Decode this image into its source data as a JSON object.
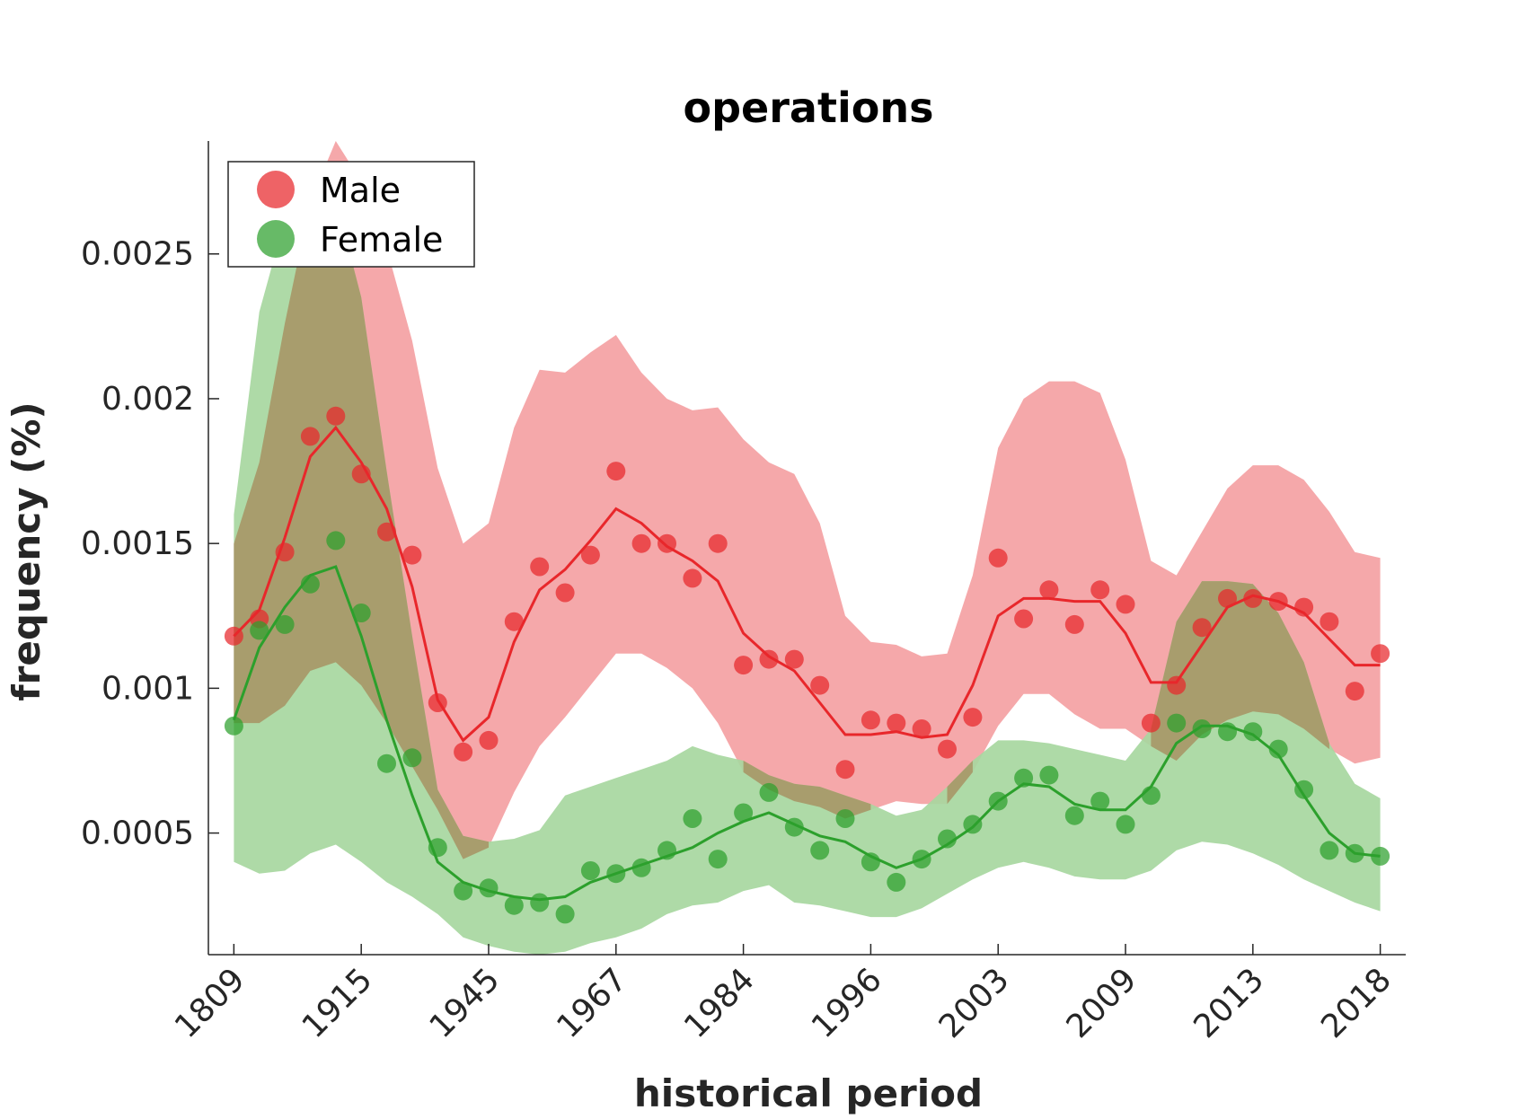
{
  "chart_data": {
    "type": "line",
    "title": "operations",
    "xlabel": "historical period",
    "ylabel": "frequency (%)",
    "x_tick_labels": [
      "1809",
      "1915",
      "1945",
      "1967",
      "1984",
      "1996",
      "2003",
      "2009",
      "2013",
      "2018"
    ],
    "x_tick_positions": [
      0,
      5,
      10,
      15,
      20,
      25,
      30,
      35,
      40,
      45
    ],
    "xlim": [
      -1,
      46
    ],
    "y_ticks": [
      0.0005,
      0.001,
      0.0015,
      0.002,
      0.0025
    ],
    "y_tick_labels": [
      "0.0005",
      "0.001",
      "0.0015",
      "0.002",
      "0.0025"
    ],
    "ylim": [
      8e-05,
      0.00289
    ],
    "legend_position": "top-left",
    "series": [
      {
        "name": "Male",
        "color": "#e8272b",
        "band_color": "#f4a1a3",
        "points": [
          0.00118,
          0.00124,
          0.00147,
          0.00187,
          0.00194,
          0.00174,
          0.00154,
          0.00146,
          0.00095,
          0.00078,
          0.00082,
          0.00123,
          0.00142,
          0.00133,
          0.00146,
          0.00175,
          0.0015,
          0.0015,
          0.00138,
          0.0015,
          0.00108,
          0.0011,
          0.0011,
          0.00101,
          0.00072,
          0.00089,
          0.00088,
          0.00086,
          0.00079,
          0.0009,
          0.00145,
          0.00124,
          0.00134,
          0.00122,
          0.00134,
          0.00129,
          0.00088,
          0.00101,
          0.00121,
          0.00131,
          0.00131,
          0.0013,
          0.00128,
          0.00123,
          0.00099,
          0.00112
        ],
        "trend": [
          0.00118,
          0.00127,
          0.00152,
          0.0018,
          0.0019,
          0.00178,
          0.00162,
          0.00135,
          0.00096,
          0.00082,
          0.0009,
          0.00116,
          0.00134,
          0.00141,
          0.00151,
          0.00162,
          0.00157,
          0.00149,
          0.00144,
          0.00137,
          0.00119,
          0.00111,
          0.00106,
          0.00095,
          0.00084,
          0.00084,
          0.00085,
          0.00083,
          0.00084,
          0.00101,
          0.00125,
          0.00131,
          0.00131,
          0.0013,
          0.0013,
          0.00119,
          0.00102,
          0.00102,
          0.00115,
          0.00128,
          0.00132,
          0.0013,
          0.00126,
          0.00117,
          0.00108,
          0.00108
        ],
        "band_upper": [
          0.0015,
          0.00178,
          0.00226,
          0.00268,
          0.00289,
          0.00275,
          0.00252,
          0.0022,
          0.00176,
          0.0015,
          0.00157,
          0.0019,
          0.0021,
          0.00209,
          0.00216,
          0.00222,
          0.00209,
          0.002,
          0.00196,
          0.00197,
          0.00186,
          0.00178,
          0.00174,
          0.00157,
          0.00125,
          0.00116,
          0.00115,
          0.00111,
          0.00112,
          0.00139,
          0.00183,
          0.002,
          0.00206,
          0.00206,
          0.00202,
          0.00179,
          0.00144,
          0.00139,
          0.00154,
          0.00169,
          0.00177,
          0.00177,
          0.00172,
          0.00161,
          0.00147,
          0.00145
        ],
        "band_lower": [
          0.00088,
          0.00088,
          0.00094,
          0.00106,
          0.00109,
          0.00101,
          0.00088,
          0.00073,
          0.00058,
          0.00041,
          0.00045,
          0.00064,
          0.0008,
          0.0009,
          0.00101,
          0.00112,
          0.00112,
          0.00107,
          0.001,
          0.00088,
          0.00071,
          0.00065,
          0.00061,
          0.00059,
          0.00055,
          0.00058,
          0.00061,
          0.0006,
          0.0006,
          0.00071,
          0.00087,
          0.00098,
          0.00098,
          0.00091,
          0.00086,
          0.00086,
          0.0008,
          0.00075,
          0.00084,
          0.00089,
          0.00092,
          0.00091,
          0.00086,
          0.00079,
          0.00074,
          0.00076
        ]
      },
      {
        "name": "Female",
        "color": "#2ca02c",
        "band_color": "#a7d7a0",
        "points": [
          0.00087,
          0.0012,
          0.00122,
          0.00136,
          0.00151,
          0.00126,
          0.00074,
          0.00076,
          0.00045,
          0.0003,
          0.00031,
          0.00025,
          0.00026,
          0.00022,
          0.00037,
          0.00036,
          0.00038,
          0.00044,
          0.00055,
          0.00041,
          0.00057,
          0.00064,
          0.00052,
          0.00044,
          0.00055,
          0.0004,
          0.00033,
          0.00041,
          0.00048,
          0.00053,
          0.00061,
          0.00069,
          0.0007,
          0.00056,
          0.00061,
          0.00053,
          0.00063,
          0.00088,
          0.00086,
          0.00085,
          0.00085,
          0.00079,
          0.00065,
          0.00044,
          0.00043,
          0.00042
        ],
        "trend": [
          0.00089,
          0.00114,
          0.00128,
          0.00139,
          0.00142,
          0.00118,
          0.00089,
          0.00063,
          0.0004,
          0.00033,
          0.0003,
          0.00028,
          0.00027,
          0.00028,
          0.00033,
          0.00036,
          0.00039,
          0.00042,
          0.00045,
          0.0005,
          0.00054,
          0.00057,
          0.00053,
          0.00049,
          0.00047,
          0.00042,
          0.00038,
          0.00041,
          0.00046,
          0.00052,
          0.00061,
          0.00067,
          0.00066,
          0.0006,
          0.00058,
          0.00058,
          0.00066,
          0.00081,
          0.00087,
          0.00087,
          0.00084,
          0.00077,
          0.00063,
          0.0005,
          0.00043,
          0.00042
        ],
        "band_upper": [
          0.0016,
          0.0023,
          0.00262,
          0.00274,
          0.00269,
          0.00235,
          0.00175,
          0.00118,
          0.00065,
          0.00049,
          0.00047,
          0.00048,
          0.00051,
          0.00063,
          0.00066,
          0.00069,
          0.00072,
          0.00075,
          0.0008,
          0.00077,
          0.00075,
          0.0007,
          0.00067,
          0.00066,
          0.00063,
          0.0006,
          0.00056,
          0.00058,
          0.00066,
          0.00075,
          0.00082,
          0.00082,
          0.00081,
          0.00079,
          0.00077,
          0.00075,
          0.00086,
          0.00123,
          0.00137,
          0.00137,
          0.00136,
          0.00126,
          0.00109,
          0.00081,
          0.00067,
          0.00062
        ],
        "band_lower": [
          0.0004,
          0.00036,
          0.00037,
          0.00043,
          0.00046,
          0.0004,
          0.00033,
          0.00028,
          0.00022,
          0.00014,
          0.00011,
          9e-05,
          8e-05,
          9e-05,
          0.00012,
          0.00014,
          0.00017,
          0.00022,
          0.00025,
          0.00026,
          0.0003,
          0.00032,
          0.00026,
          0.00025,
          0.00023,
          0.00021,
          0.00021,
          0.00024,
          0.00029,
          0.00034,
          0.00038,
          0.0004,
          0.00038,
          0.00035,
          0.00034,
          0.00034,
          0.00037,
          0.00044,
          0.00047,
          0.00046,
          0.00043,
          0.00039,
          0.00034,
          0.0003,
          0.00026,
          0.00023
        ]
      }
    ]
  }
}
